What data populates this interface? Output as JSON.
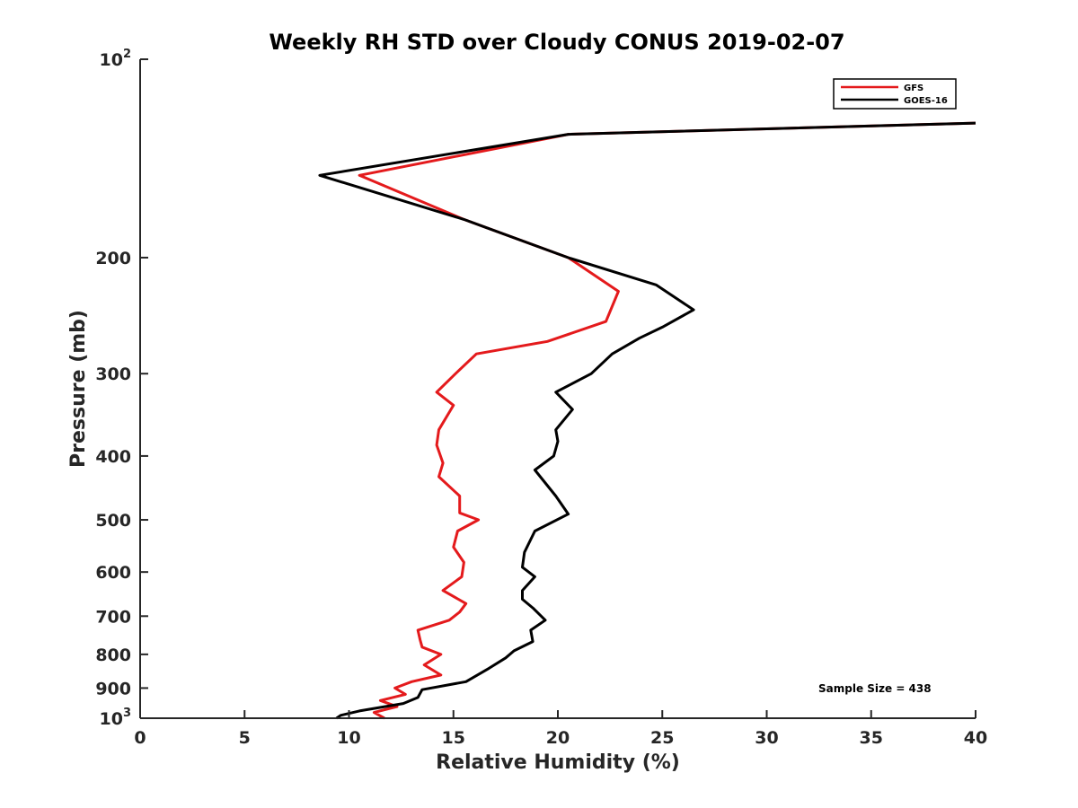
{
  "chart_data": {
    "type": "line",
    "title": "Weekly RH STD over Cloudy CONUS 2019-02-07",
    "xlabel": "Relative Humidity (%)",
    "ylabel": "Pressure (mb)",
    "xlim": [
      0,
      40
    ],
    "ylim": [
      100,
      1000
    ],
    "yscale": "log",
    "yreversed": true,
    "grid": false,
    "legend_position": "top-right",
    "x_ticks": [
      0,
      5,
      10,
      15,
      20,
      25,
      30,
      35,
      40
    ],
    "y_ticks": [
      {
        "value": 100,
        "base": "10",
        "exp": "2"
      },
      {
        "value": 200,
        "label": "200"
      },
      {
        "value": 300,
        "label": "300"
      },
      {
        "value": 400,
        "label": "400"
      },
      {
        "value": 500,
        "label": "500"
      },
      {
        "value": 600,
        "label": "600"
      },
      {
        "value": 700,
        "label": "700"
      },
      {
        "value": 800,
        "label": "800"
      },
      {
        "value": 900,
        "label": "900"
      },
      {
        "value": 1000,
        "base": "10",
        "exp": "3"
      }
    ],
    "annotation": "Sample Size = 438",
    "series": [
      {
        "name": "GFS",
        "color": "#e41a1c",
        "x": [
          40.0,
          20.5,
          10.5,
          15.5,
          20.5,
          22.9,
          22.3,
          19.5,
          16.1,
          15.1,
          14.2,
          15.0,
          14.3,
          14.2,
          14.5,
          14.3,
          15.3,
          15.3,
          16.2,
          15.2,
          15.0,
          15.5,
          15.4,
          14.5,
          15.6,
          15.3,
          14.8,
          13.3,
          13.4,
          13.5,
          14.4,
          13.6,
          14.4,
          13.0,
          12.2,
          12.7,
          11.5,
          12.3,
          11.2,
          11.7
        ],
        "y": [
          125,
          130,
          150,
          175,
          200,
          225,
          250,
          268,
          280,
          300,
          320,
          335,
          365,
          385,
          410,
          430,
          460,
          488,
          500,
          520,
          550,
          580,
          610,
          640,
          670,
          690,
          710,
          735,
          760,
          780,
          800,
          830,
          860,
          880,
          900,
          920,
          940,
          960,
          980,
          1000
        ]
      },
      {
        "name": "GOES-16",
        "color": "#000000",
        "x": [
          40.0,
          20.5,
          8.6,
          15.5,
          20.5,
          24.7,
          26.5,
          25.0,
          23.9,
          22.6,
          21.6,
          19.9,
          20.7,
          19.9,
          20.0,
          19.8,
          18.9,
          19.9,
          20.5,
          18.9,
          18.4,
          18.3,
          18.9,
          18.3,
          18.3,
          18.8,
          19.4,
          18.7,
          18.8,
          17.9,
          17.5,
          16.7,
          15.6,
          13.5,
          13.3,
          12.6,
          10.5,
          9.6,
          9.4
        ],
        "y": [
          125,
          130,
          150,
          175,
          200,
          220,
          240,
          255,
          265,
          280,
          300,
          320,
          340,
          365,
          380,
          400,
          420,
          460,
          490,
          520,
          560,
          590,
          610,
          640,
          660,
          680,
          710,
          735,
          765,
          790,
          810,
          840,
          880,
          905,
          930,
          950,
          975,
          990,
          1000
        ]
      }
    ]
  }
}
